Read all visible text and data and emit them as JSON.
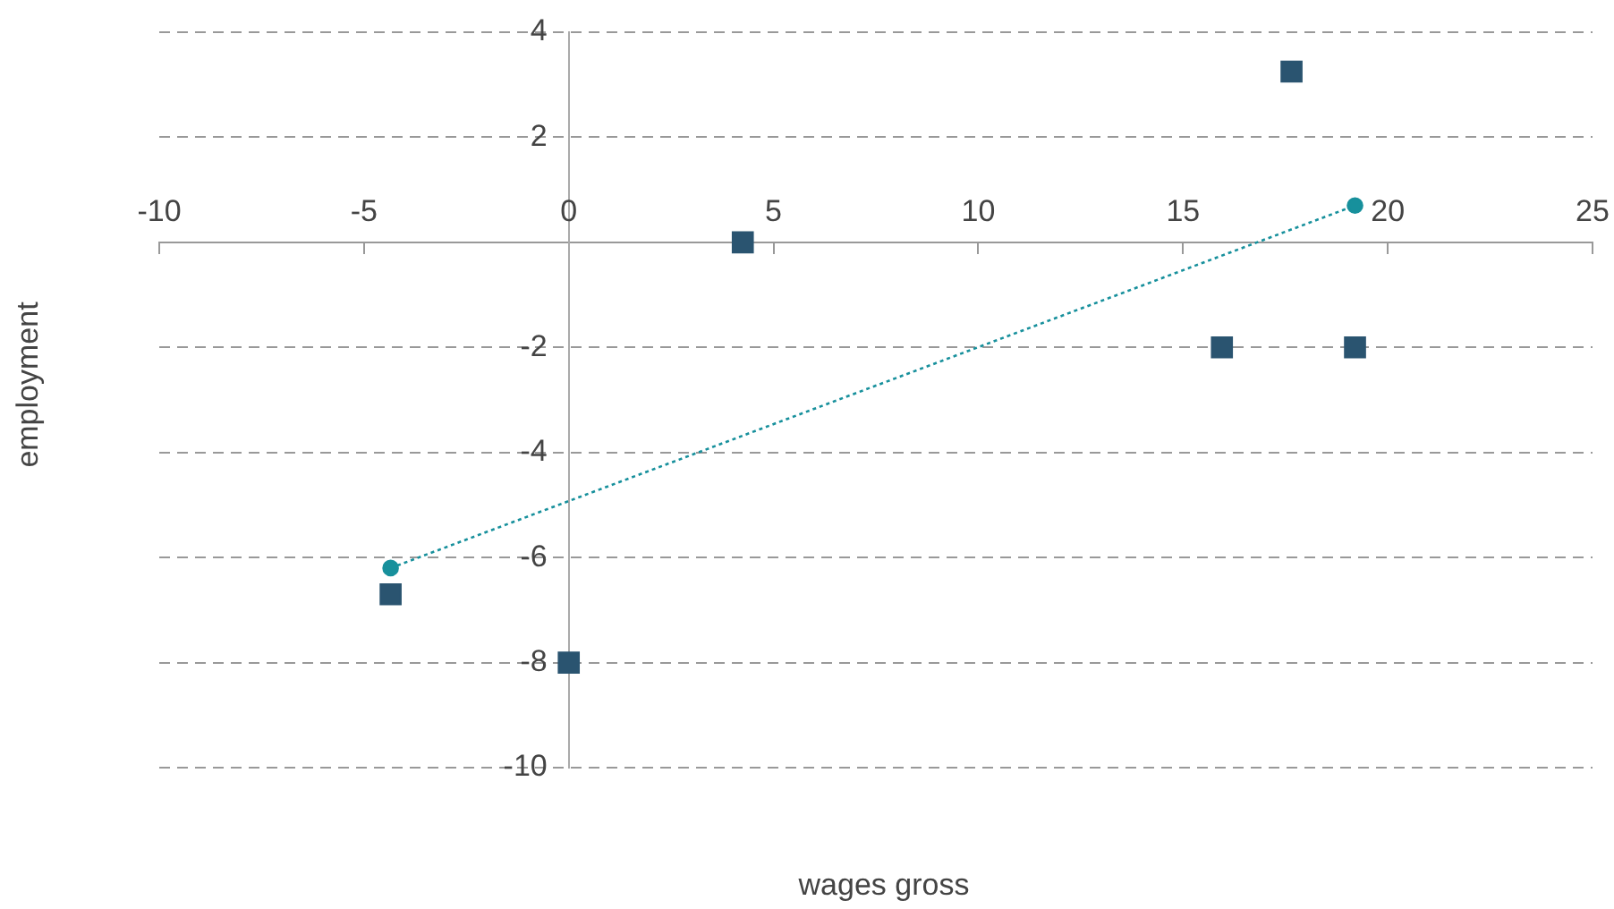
{
  "chart_data": {
    "type": "scatter",
    "xlabel": "wages gross",
    "ylabel": "employment",
    "xlim": [
      -10,
      25
    ],
    "xticks": [
      -10,
      -5,
      0,
      5,
      10,
      15,
      20,
      25
    ],
    "ylim": [
      -10,
      4
    ],
    "yticks": [
      -10,
      -8,
      -6,
      -4,
      -2,
      {
        "value": 0,
        "label": null
      },
      2,
      4
    ],
    "grid": "y",
    "marker": "square",
    "series": [
      {
        "color": "#2a5470",
        "x": [
          4.25,
          17.65,
          15.95,
          19.2,
          -4.35,
          0
        ],
        "values": [
          0,
          3.25,
          -2,
          -2,
          -6.7,
          -8
        ]
      },
      {
        "type": "line",
        "color": "#17909c",
        "marker": "circle",
        "line_style": "dotted",
        "x": [
          -4.35,
          19.2
        ],
        "values": [
          -6.2,
          0.7
        ]
      }
    ]
  }
}
